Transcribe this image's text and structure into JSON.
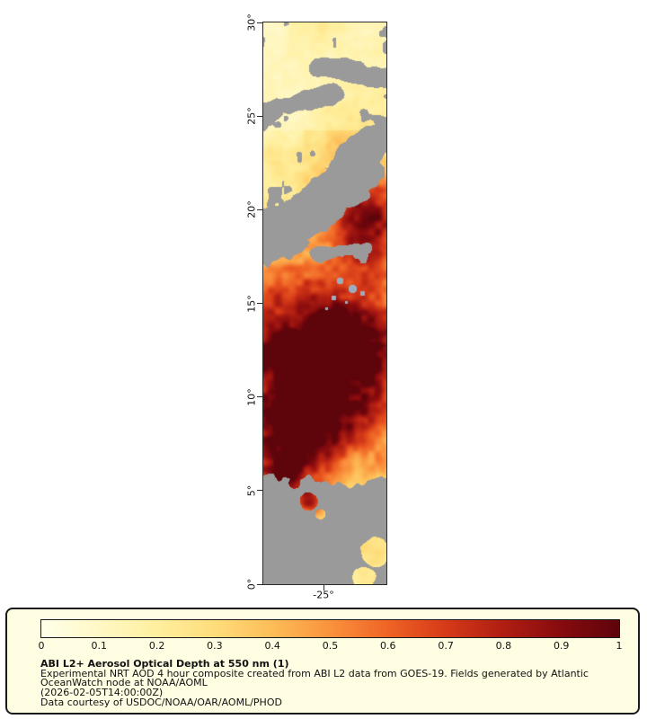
{
  "figure": {
    "map": {
      "y_axis_ticks": [
        "30°",
        "25°",
        "20°",
        "15°",
        "10°",
        "5°",
        "0°"
      ],
      "x_axis_ticks": [
        "-25°"
      ],
      "nodata_color": "#9A9A9A"
    },
    "legend": {
      "title": "ABI L2+ Aerosol Optical Depth at 550 nm (1)",
      "description_lines": [
        "Experimental NRT AOD 4 hour composite created from ABI L2 data from GOES-19. Fields generated by Atlantic",
        "OceanWatch node at NOAA/AOML"
      ],
      "timestamp": "(2026-02-05T14:00:00Z)",
      "courtesy": "Data courtesy of USDOC/NOAA/OAR/AOML/PHOD",
      "colorbar_ticks": [
        "0",
        "0.1",
        "0.2",
        "0.3",
        "0.4",
        "0.5",
        "0.6",
        "0.7",
        "0.8",
        "0.9",
        "1"
      ],
      "colormap_stops": [
        {
          "t": 0.0,
          "c": "#FFFFE9"
        },
        {
          "t": 0.1,
          "c": "#FFF8C6"
        },
        {
          "t": 0.2,
          "c": "#FFEF9E"
        },
        {
          "t": 0.3,
          "c": "#FEDD7B"
        },
        {
          "t": 0.4,
          "c": "#FDBD57"
        },
        {
          "t": 0.5,
          "c": "#FA923D"
        },
        {
          "t": 0.6,
          "c": "#EF6425"
        },
        {
          "t": 0.7,
          "c": "#D63A18"
        },
        {
          "t": 0.8,
          "c": "#B01E12"
        },
        {
          "t": 0.9,
          "c": "#870B0E"
        },
        {
          "t": 1.0,
          "c": "#5E040B"
        }
      ]
    }
  },
  "chart_data": {
    "type": "heatmap",
    "title": "ABI L2+ Aerosol Optical Depth at 550 nm (1)",
    "value_range": [
      0,
      1
    ],
    "colorbar_ticks": [
      0,
      0.1,
      0.2,
      0.3,
      0.4,
      0.5,
      0.6,
      0.7,
      0.8,
      0.9,
      1
    ],
    "y_axis_ticks_deg": [
      30,
      25,
      20,
      15,
      10,
      5,
      0
    ],
    "x_axis_ticks_deg": [
      -25
    ],
    "nodata_color": "#9A9A9A",
    "features": [
      {
        "lat_band": "24-30",
        "summary": "Low AOD (~0.1-0.3) pale background with gray no-data cloud streaks near 25-27"
      },
      {
        "lat_band": "18-24",
        "summary": "Large diagonal gray no-data band; orange-red plume (AOD 0.5-0.9) along the eastern edge near 19-21"
      },
      {
        "lat_band": "13-18",
        "summary": "Moderate AOD 0.3-0.6 with small scattered cloud specks near 15-16"
      },
      {
        "lat_band": "8-13",
        "summary": "Dense dust plume, AOD 0.6-1.0, darkest cores near 10-12"
      },
      {
        "lat_band": "5-8",
        "summary": "High AOD patch (0.6-0.9) just above the southern cloud edge"
      },
      {
        "lat_band": "0-5",
        "summary": "Mostly gray no-data; small pale low-AOD patch (~0.2) near 1-2"
      }
    ]
  }
}
